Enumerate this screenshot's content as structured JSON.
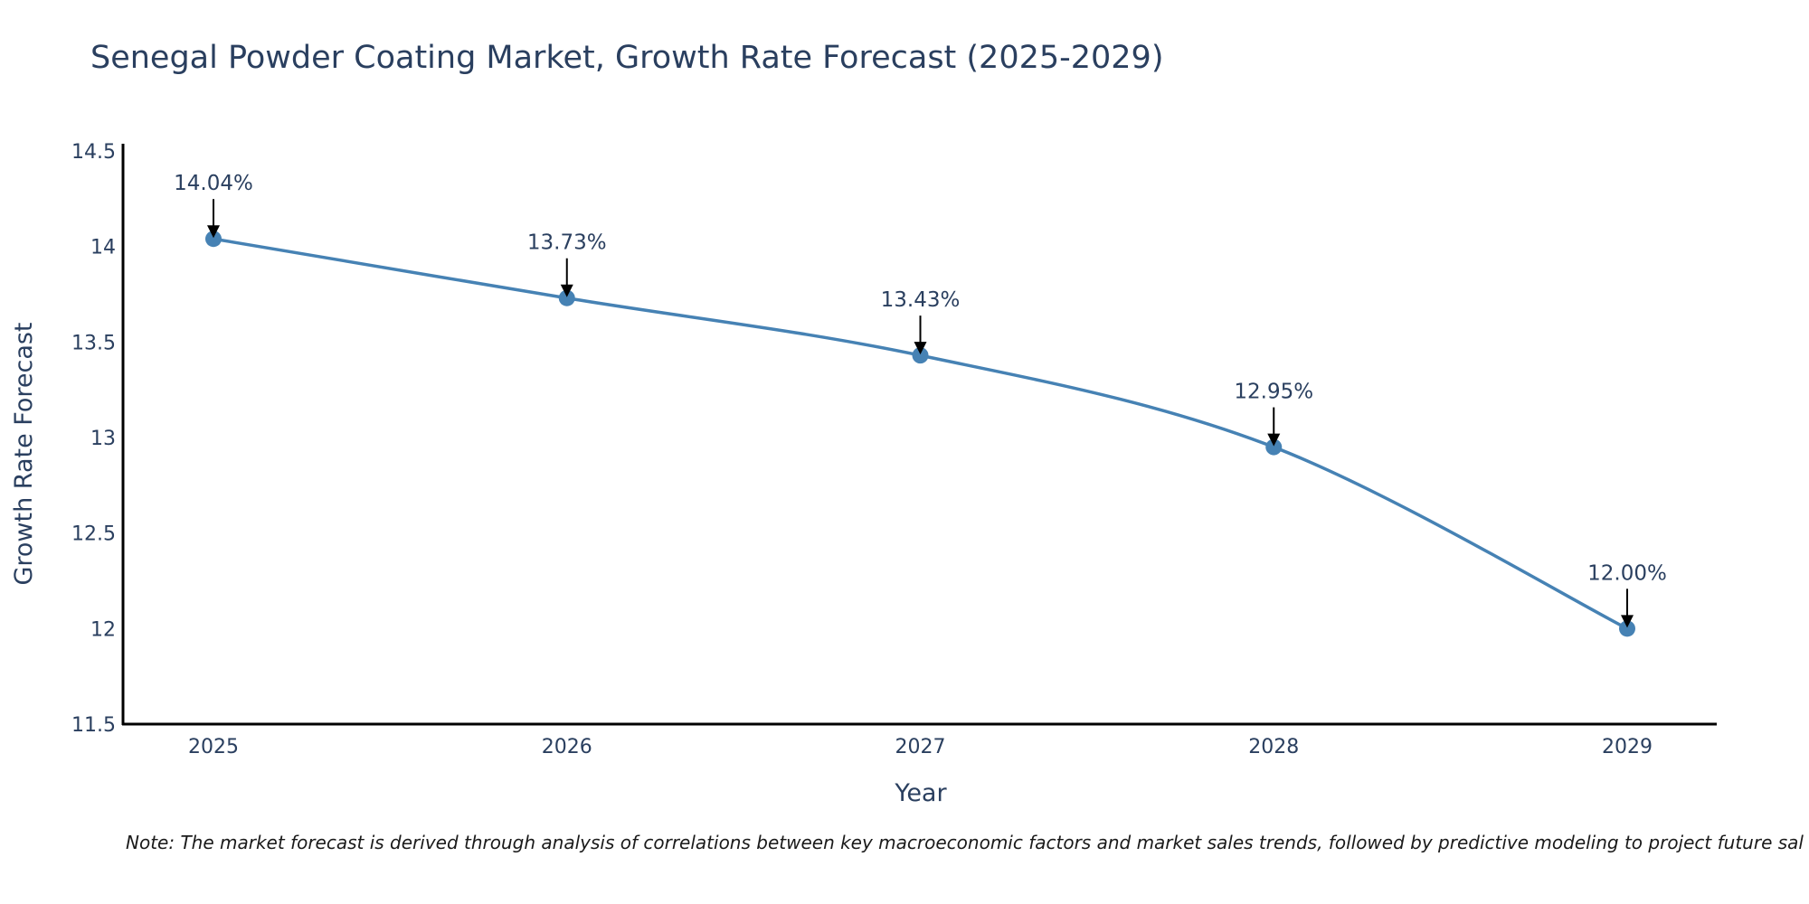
{
  "title": "Senegal Powder Coating Market, Growth Rate Forecast (2025-2029)",
  "note": "Note: The market forecast is derived through analysis of correlations between key macroeconomic factors and market sales trends, followed by predictive modeling to project future sal",
  "colors": {
    "line": "#4682b4",
    "marker": "#4682b4",
    "axis": "#000000",
    "text": "#2a3f5f",
    "arrow": "#000000"
  },
  "chart_data": {
    "type": "line",
    "title": "Senegal Powder Coating Market, Growth Rate Forecast (2025-2029)",
    "xlabel": "Year",
    "ylabel": "Growth Rate Forecast",
    "categories": [
      "2025",
      "2026",
      "2027",
      "2028",
      "2029"
    ],
    "values": [
      14.04,
      13.73,
      13.43,
      12.95,
      12.0
    ],
    "data_labels": [
      "14.04%",
      "13.73%",
      "13.43%",
      "12.95%",
      "12.00%"
    ],
    "ylim": [
      11.5,
      14.5
    ],
    "yticks": [
      11.5,
      12,
      12.5,
      13,
      13.5,
      14,
      14.5
    ],
    "ytick_labels": [
      "11.5",
      "12",
      "12.5",
      "13",
      "13.5",
      "14",
      "14.5"
    ],
    "line_shape": "spline",
    "grid": false,
    "legend": "none"
  }
}
